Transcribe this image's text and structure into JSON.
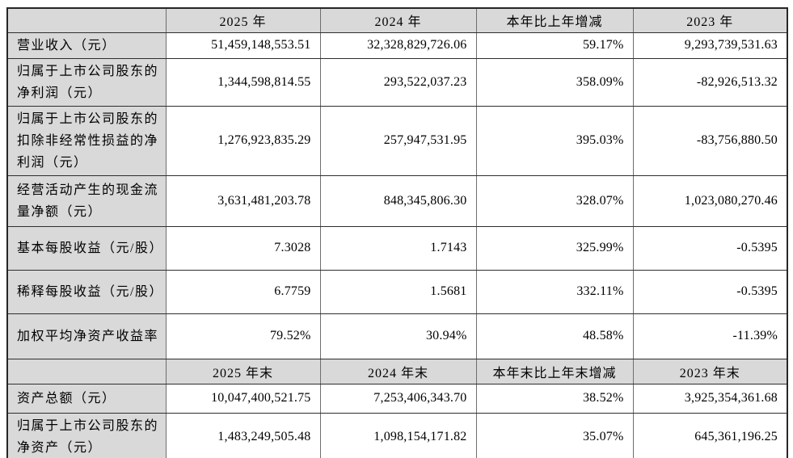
{
  "colors": {
    "shaded_cell_bg": "#d9d9d9",
    "data_cell_bg": "#ffffff",
    "outer_border": "#262626",
    "grid_horizontal": "#2e2e2e",
    "grid_vertical": "#6e6e6e",
    "text": "#000000"
  },
  "section1": {
    "headers": [
      "",
      "2025 年",
      "2024 年",
      "本年比上年增减",
      "2023 年"
    ],
    "rows": [
      {
        "label": "营业收入（元）",
        "values": [
          "51,459,148,553.51",
          "32,328,829,726.06",
          "59.17%",
          "9,293,739,531.63"
        ]
      },
      {
        "label": "归属于上市公司股东的净利润（元）",
        "values": [
          "1,344,598,814.55",
          "293,522,037.23",
          "358.09%",
          "-82,926,513.32"
        ]
      },
      {
        "label": "归属于上市公司股东的扣除非经常性损益的净利润（元）",
        "values": [
          "1,276,923,835.29",
          "257,947,531.95",
          "395.03%",
          "-83,756,880.50"
        ]
      },
      {
        "label": "经营活动产生的现金流量净额（元）",
        "values": [
          "3,631,481,203.78",
          "848,345,806.30",
          "328.07%",
          "1,023,080,270.46"
        ]
      },
      {
        "label": "基本每股收益（元/股）",
        "values": [
          "7.3028",
          "1.7143",
          "325.99%",
          "-0.5395"
        ]
      },
      {
        "label": "稀释每股收益（元/股）",
        "values": [
          "6.7759",
          "1.5681",
          "332.11%",
          "-0.5395"
        ]
      },
      {
        "label": "加权平均净资产收益率",
        "values": [
          "79.52%",
          "30.94%",
          "48.58%",
          "-11.39%"
        ]
      }
    ]
  },
  "section2": {
    "headers": [
      "",
      "2025 年末",
      "2024 年末",
      "本年末比上年末增减",
      "2023 年末"
    ],
    "rows": [
      {
        "label": "资产总额（元）",
        "values": [
          "10,047,400,521.75",
          "7,253,406,343.70",
          "38.52%",
          "3,925,354,361.68"
        ]
      },
      {
        "label": "归属于上市公司股东的净资产（元）",
        "values": [
          "1,483,249,505.48",
          "1,098,154,171.82",
          "35.07%",
          "645,361,196.25"
        ]
      }
    ]
  }
}
